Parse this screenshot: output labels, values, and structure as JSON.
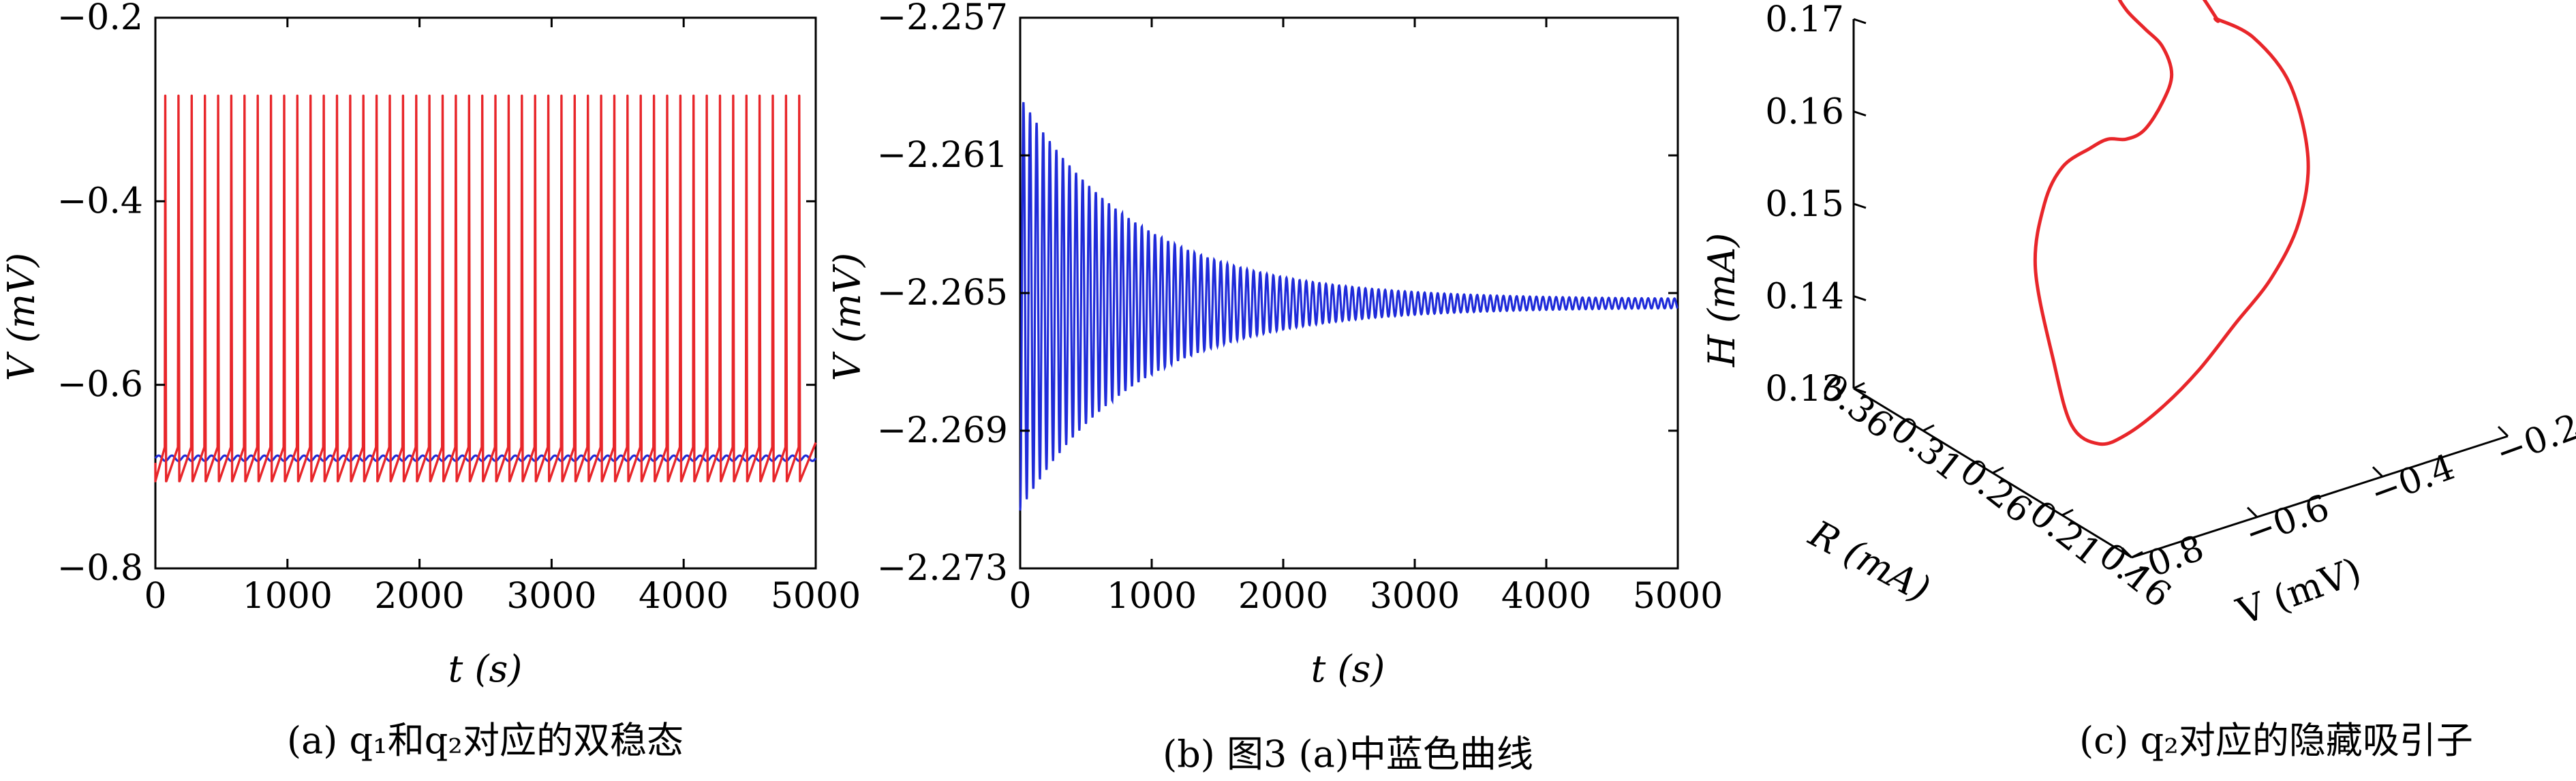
{
  "chart_data": [
    {
      "id": "a",
      "type": "line",
      "caption": "(a) q₁和q₂对应的双稳态",
      "xlabel": "t (s)",
      "ylabel": "V (mV)",
      "xlim": [
        0,
        5000
      ],
      "ylim": [
        -0.8,
        -0.2
      ],
      "xticks": [
        0,
        1000,
        2000,
        3000,
        4000,
        5000
      ],
      "yticks": [
        -0.8,
        -0.6,
        -0.4,
        -0.2
      ],
      "ytick_labels": [
        "−0.8",
        "−0.6",
        "−0.4",
        "−0.2"
      ],
      "grid": false,
      "series": [
        {
          "color": "#e8262a",
          "description": "periodic spiking",
          "spike_peak": -0.285,
          "trough": -0.705,
          "baseline_before_spike": -0.668,
          "period": 100,
          "first_spike": 75,
          "last_spike": 4925,
          "spike_count": 49
        },
        {
          "color": "#1f2bd9",
          "description": "near-constant rest state",
          "mean": -0.68,
          "amplitude": 0.003
        }
      ]
    },
    {
      "id": "b",
      "type": "line",
      "caption": "(b) 图3 (a)中蓝色曲线",
      "xlabel": "t (s)",
      "ylabel": "V (mV)",
      "xlim": [
        0,
        5000
      ],
      "ylim": [
        -2.273,
        -2.257
      ],
      "xticks": [
        0,
        1000,
        2000,
        3000,
        4000,
        5000
      ],
      "yticks": [
        -2.273,
        -2.269,
        -2.265,
        -2.261,
        -2.257
      ],
      "ytick_labels": [
        "−2.273",
        "−2.269",
        "−2.265",
        "−2.261",
        "−2.257"
      ],
      "grid": false,
      "series": [
        {
          "color": "#1f2bd9",
          "description": "damped oscillation",
          "equilibrium": -2.2653,
          "initial_min": -2.2716,
          "initial_max": -2.2598,
          "period": 50,
          "decay_time": 900
        }
      ]
    },
    {
      "id": "c",
      "type": "line",
      "subtype": "3d-phase-portrait",
      "caption": "(c) q₂对应的隐藏吸引子",
      "xlabel": "V (mV)",
      "ylabel": "R (mA)",
      "zlabel": "H (mA)",
      "xticks": [
        -0.8,
        -0.6,
        -0.4,
        -0.2
      ],
      "xtick_labels": [
        "−0.8",
        "−0.6",
        "−0.4",
        "−0.2"
      ],
      "yticks": [
        0.16,
        0.21,
        0.26,
        0.31,
        0.36
      ],
      "zticks": [
        0.13,
        0.14,
        0.15,
        0.16,
        0.17
      ],
      "series": [
        {
          "color": "#e8262a",
          "description": "closed loop (hidden attractor)",
          "v": [
            -0.5,
            -0.46,
            -0.42,
            -0.4,
            -0.41,
            -0.44,
            -0.48,
            -0.52,
            -0.56,
            -0.6,
            -0.63,
            -0.66,
            -0.68,
            -0.7,
            -0.69,
            -0.67,
            -0.64,
            -0.62,
            -0.6,
            -0.58,
            -0.56,
            -0.55,
            -0.56,
            -0.58,
            -0.6,
            -0.61,
            -0.6,
            -0.57,
            -0.53,
            -0.5
          ],
          "r": [
            0.26,
            0.26,
            0.26,
            0.26,
            0.26,
            0.26,
            0.26,
            0.26,
            0.26,
            0.26,
            0.26,
            0.26,
            0.26,
            0.26,
            0.26,
            0.26,
            0.26,
            0.26,
            0.26,
            0.26,
            0.26,
            0.26,
            0.26,
            0.26,
            0.26,
            0.26,
            0.26,
            0.26,
            0.26,
            0.26
          ],
          "h": [
            0.17,
            0.168,
            0.163,
            0.155,
            0.148,
            0.142,
            0.137,
            0.132,
            0.128,
            0.125,
            0.124,
            0.126,
            0.133,
            0.143,
            0.15,
            0.154,
            0.156,
            0.157,
            0.157,
            0.158,
            0.161,
            0.164,
            0.167,
            0.169,
            0.171,
            0.173,
            0.175,
            0.176,
            0.174,
            0.17
          ]
        }
      ]
    }
  ]
}
